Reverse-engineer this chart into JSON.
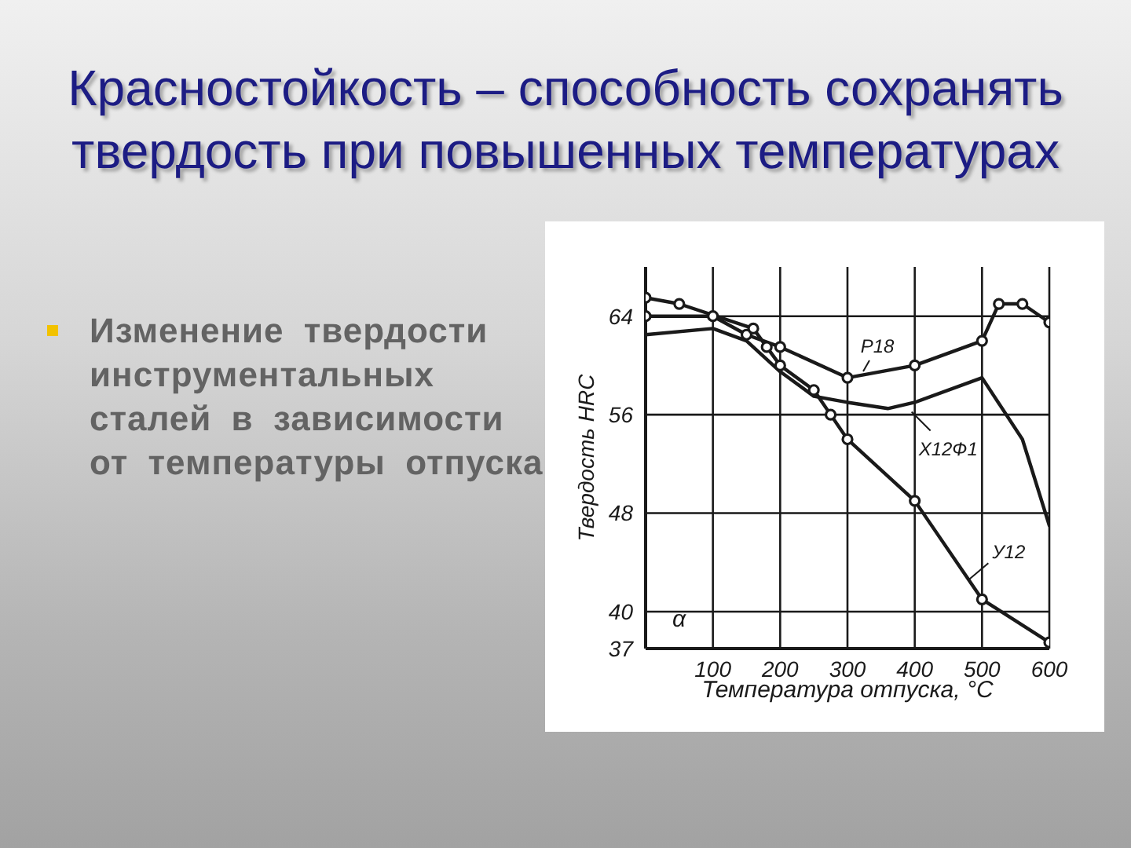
{
  "chart_data": {
    "type": "line",
    "title": "Красностойкость – способность сохранять твердость при повышенных температурах",
    "subtitle": "Изменение твердости инструментальных сталей в зависимости от температуры отпуска",
    "xlabel": "Температура отпуска, °C",
    "ylabel": "Твердость HRC",
    "annotations": [
      "α"
    ],
    "xlim": [
      0,
      600
    ],
    "xticks": [
      100,
      200,
      300,
      400,
      500,
      600
    ],
    "ylim": [
      37,
      68
    ],
    "yticks": [
      37,
      40,
      48,
      56,
      64
    ],
    "grid": true,
    "line_style": "solid",
    "series": [
      {
        "name": "Р18",
        "color": "#1a1a1a",
        "marker": "circle",
        "x": [
          0,
          100,
          150,
          200,
          300,
          400,
          500,
          525,
          560,
          600
        ],
        "values": [
          64,
          64,
          62.5,
          61.5,
          59,
          60,
          62,
          65,
          65,
          63.5
        ]
      },
      {
        "name": "Х12Ф1",
        "color": "#1a1a1a",
        "marker": "none",
        "x": [
          0,
          100,
          150,
          200,
          250,
          300,
          360,
          400,
          500,
          560,
          600
        ],
        "values": [
          62.5,
          63,
          62,
          59.5,
          57.5,
          57,
          56.5,
          57,
          59,
          54,
          47
        ]
      },
      {
        "name": "У12",
        "color": "#1a1a1a",
        "marker": "circle",
        "x": [
          0,
          50,
          160,
          180,
          200,
          250,
          275,
          300,
          400,
          500,
          600
        ],
        "values": [
          65.5,
          65,
          63,
          61.5,
          60,
          58,
          56,
          54,
          49,
          41,
          37.5
        ]
      }
    ]
  }
}
